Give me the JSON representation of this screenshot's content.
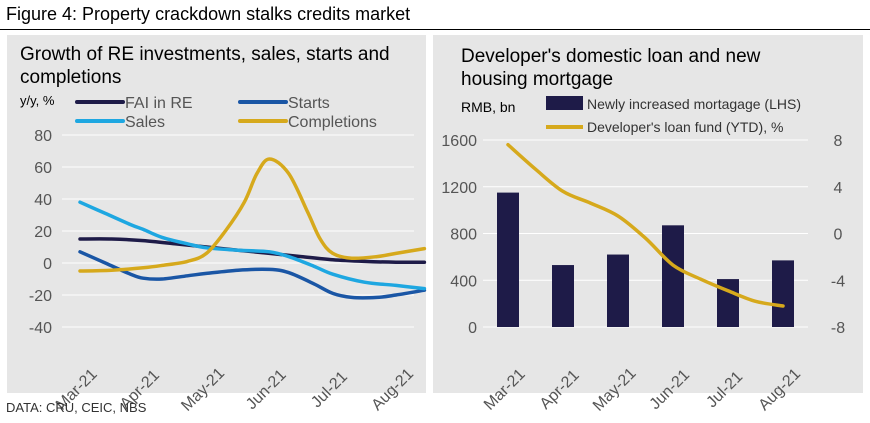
{
  "figure_title": "Figure 4: Property crackdown stalks credits market",
  "source": "DATA: CRU, CEIC, NBS",
  "colors": {
    "panel_bg": "#e6e6e6",
    "navy": "#1e1b48",
    "blue": "#1a56a5",
    "light_blue": "#1ea7e1",
    "gold": "#d6a91c",
    "grid": "#ffffff",
    "axis_text": "#555555"
  },
  "chart_data": [
    {
      "type": "line",
      "title": "Growth of RE investments, sales, starts and completions",
      "ylabel": "y/y, %",
      "categories": [
        "Mar-21",
        "Apr-21",
        "May-21",
        "Jun-21",
        "Jul-21",
        "Aug-21"
      ],
      "yticks": [
        -40,
        -20,
        0,
        20,
        40,
        60,
        80
      ],
      "ylim": [
        -40,
        80
      ],
      "grid": true,
      "legend": [
        "FAI in RE",
        "Starts",
        "Sales",
        "Completions"
      ],
      "series": [
        {
          "name": "FAI in RE",
          "color": "#1e1b48",
          "x": [
            0,
            0.5,
            1,
            1.5,
            2,
            2.5,
            3,
            3.5,
            4,
            4.5,
            5,
            5.45
          ],
          "values": [
            15,
            15,
            14,
            12,
            10,
            8,
            6,
            4,
            2,
            1,
            0.5,
            0.5
          ]
        },
        {
          "name": "Starts",
          "color": "#1a56a5",
          "x": [
            0,
            0.4,
            0.8,
            1,
            1.3,
            1.7,
            2,
            2.5,
            3,
            3.3,
            3.7,
            4,
            4.3,
            4.7,
            5,
            5.45
          ],
          "values": [
            7,
            0,
            -7,
            -9.5,
            -10,
            -8,
            -6.5,
            -4.5,
            -4,
            -6,
            -13,
            -19,
            -21.5,
            -21.5,
            -20,
            -17
          ]
        },
        {
          "name": "Sales",
          "color": "#1ea7e1",
          "x": [
            0,
            0.4,
            0.8,
            1,
            1.3,
            1.7,
            2,
            2.5,
            3,
            3.3,
            3.7,
            4,
            4.5,
            5,
            5.45
          ],
          "values": [
            38,
            31,
            24,
            21,
            16,
            12,
            9.5,
            8,
            7,
            4,
            -2,
            -7,
            -12,
            -14,
            -16
          ]
        },
        {
          "name": "Completions",
          "color": "#d6a91c",
          "x": [
            0,
            0.5,
            1,
            1.3,
            1.7,
            2,
            2.3,
            2.6,
            2.8,
            3,
            3.3,
            3.6,
            3.8,
            4,
            4.3,
            4.7,
            5,
            5.45
          ],
          "values": [
            -5,
            -4.5,
            -3,
            -1.5,
            1,
            6,
            20,
            38,
            56,
            65,
            56,
            32,
            15,
            6,
            3,
            4,
            6,
            9
          ]
        }
      ]
    },
    {
      "type": "bar+line",
      "title": "Developer's domestic loan and new housing mortgage",
      "ylabel": "RMB, bn",
      "categories": [
        "Mar-21",
        "Apr-21",
        "May-21",
        "Jun-21",
        "Jul-21",
        "Aug-21"
      ],
      "y_left_ticks": [
        0,
        400,
        800,
        1200,
        1600
      ],
      "y_left_lim": [
        0,
        1600
      ],
      "y_right_ticks": [
        -8,
        -4,
        0,
        4,
        8
      ],
      "y_right_lim": [
        -8,
        8
      ],
      "grid": true,
      "legend": [
        "Newly increased mortagage (LHS)",
        "Developer's loan fund (YTD), %"
      ],
      "bars": {
        "name": "Newly increased mortagage (LHS)",
        "axis": "left",
        "color": "#1e1b48",
        "values": [
          1150,
          530,
          620,
          870,
          410,
          570
        ]
      },
      "line": {
        "name": "Developer's loan fund (YTD), %",
        "axis": "right",
        "color": "#d6a91c",
        "x": [
          0,
          0.5,
          1,
          1.5,
          2,
          2.5,
          3,
          3.5,
          4,
          4.5,
          5
        ],
        "values": [
          7.6,
          5.5,
          3.6,
          2.6,
          1.5,
          -0.4,
          -2.7,
          -3.9,
          -4.9,
          -5.8,
          -6.2
        ]
      }
    }
  ]
}
